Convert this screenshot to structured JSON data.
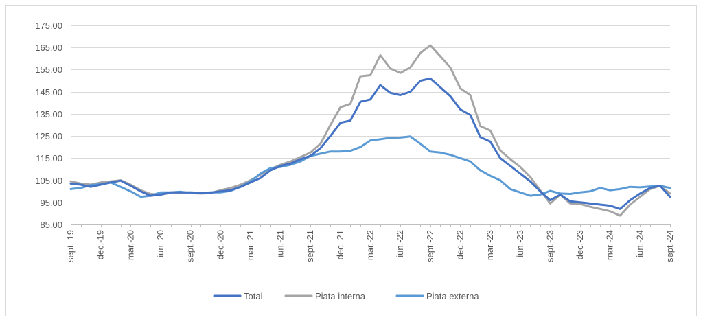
{
  "chart_data": {
    "type": "line",
    "title": "",
    "xlabel": "",
    "ylabel": "",
    "ylim": [
      85,
      175
    ],
    "yticks": [
      "175.00",
      "165.00",
      "155.00",
      "145.00",
      "135.00",
      "125.00",
      "115.00",
      "105.00",
      "95.00",
      "85.00"
    ],
    "yticks_values": [
      175,
      165,
      155,
      145,
      135,
      125,
      115,
      105,
      95,
      85
    ],
    "x": [
      "sept.-19",
      "oct.-19",
      "nov.-19",
      "dec.-19",
      "ian.-20",
      "feb.-20",
      "mar.-20",
      "apr.-20",
      "mai.-20",
      "iun.-20",
      "iul.-20",
      "aug.-20",
      "sept.-20",
      "oct.-20",
      "nov.-20",
      "dec.-20",
      "ian.-21",
      "feb.-21",
      "mar.-21",
      "apr.-21",
      "mai.-21",
      "iun.-21",
      "iul.-21",
      "aug.-21",
      "sept.-21",
      "oct.-21",
      "nov.-21",
      "dec.-21",
      "ian.-22",
      "feb.-22",
      "mar.-22",
      "apr.-22",
      "mai.-22",
      "iun.-22",
      "iul.-22",
      "aug.-22",
      "sept.-22",
      "oct.-22",
      "nov.-22",
      "dec.-22",
      "ian.-23",
      "feb.-23",
      "mar.-23",
      "apr.-23",
      "mai.-23",
      "iun.-23",
      "iul.-23",
      "aug.-23",
      "sept.-23",
      "oct.-23",
      "nov.-23",
      "dec.-23",
      "ian.-24",
      "feb.-24",
      "mar.-24",
      "apr.-24",
      "mai.-24",
      "iun.-24",
      "iul.-24",
      "aug.-24",
      "sept.-24"
    ],
    "x_tick_labels": [
      "sept.-19",
      "dec.-19",
      "mar.-20",
      "iun.-20",
      "sept.-20",
      "dec.-20",
      "mar.-21",
      "iun.-21",
      "sept.-21",
      "dec.-21",
      "mar.-22",
      "iun.-22",
      "sept.-22",
      "dec.-22",
      "mar.-23",
      "iun.-23",
      "sept.-23",
      "dec.-23",
      "mar.-24",
      "iun.-24",
      "sept.-24"
    ],
    "grid": true,
    "legend_position": "bottom",
    "series": [
      {
        "name": "Total",
        "color": "#4472c4",
        "values": [
          103.5,
          103,
          102,
          103,
          104,
          104.8,
          102.5,
          100,
          98,
          98.5,
          99.5,
          99.5,
          99.5,
          99.3,
          99.4,
          100,
          100.5,
          102,
          104,
          106,
          109.5,
          111.5,
          112.5,
          114.5,
          116,
          119.5,
          125,
          131,
          132,
          140.5,
          141.5,
          148,
          144.5,
          143.5,
          145,
          150,
          151,
          147,
          143,
          137,
          134.5,
          124.5,
          122.5,
          115,
          111.5,
          108,
          104.5,
          100,
          96,
          98.5,
          95.5,
          95,
          94.5,
          94,
          93.5,
          92,
          96,
          99,
          101.5,
          102.5,
          97.5
        ]
      },
      {
        "name": "Piata interna",
        "color": "#a5a5a5",
        "values": [
          104.5,
          103.5,
          103,
          104,
          104.5,
          105,
          103,
          100.5,
          98.8,
          98.5,
          99.3,
          99.2,
          99.2,
          99,
          99.2,
          100.5,
          101.5,
          103,
          105,
          107.5,
          110,
          112,
          113.5,
          115.5,
          117.5,
          121.5,
          130,
          138,
          139.5,
          152,
          152.5,
          161.5,
          155.5,
          153.5,
          156,
          162.5,
          166,
          161,
          156,
          146.5,
          143.5,
          129.5,
          127.5,
          118.5,
          114.5,
          111,
          106.5,
          100.5,
          94.5,
          98.5,
          94.5,
          94.3,
          93,
          92,
          91,
          89,
          94,
          97.5,
          101,
          102.5,
          99
        ]
      },
      {
        "name": "Piata externa",
        "color": "#5b9bd5",
        "values": [
          101,
          101.5,
          102.8,
          103.2,
          104,
          102,
          100,
          97.5,
          98,
          99.5,
          99.5,
          99.8,
          99.2,
          99.2,
          99.5,
          99.5,
          100.2,
          102,
          104.5,
          108,
          110.5,
          111,
          112,
          113.5,
          116,
          117,
          118,
          118,
          118.3,
          120,
          123,
          123.5,
          124.2,
          124.3,
          124.8,
          121.5,
          118,
          117.5,
          116.5,
          115,
          113.5,
          109.5,
          107,
          105,
          101,
          99.5,
          98,
          98.5,
          100.2,
          99,
          98.8,
          99.5,
          100,
          101.5,
          100.5,
          101,
          102,
          101.8,
          102.2,
          102.5,
          101.5
        ]
      }
    ]
  }
}
